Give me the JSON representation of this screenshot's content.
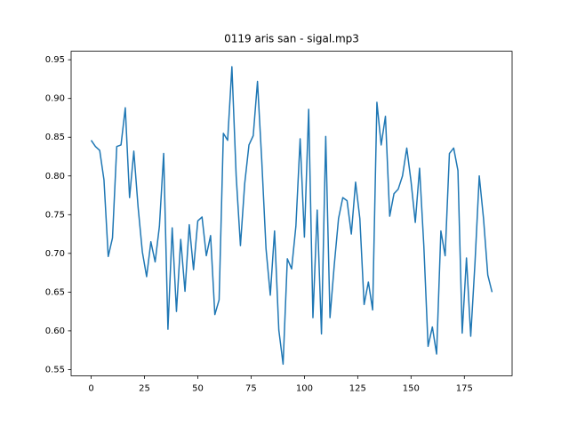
{
  "chart_data": {
    "type": "line",
    "title": "0119 aris san - sigal.mp3",
    "x": [
      0,
      2,
      4,
      6,
      8,
      10,
      12,
      14,
      16,
      18,
      20,
      22,
      24,
      26,
      28,
      30,
      32,
      34,
      36,
      38,
      40,
      42,
      44,
      46,
      48,
      50,
      52,
      54,
      56,
      58,
      60,
      62,
      64,
      66,
      68,
      70,
      72,
      74,
      76,
      78,
      80,
      82,
      84,
      86,
      88,
      90,
      92,
      94,
      96,
      98,
      100,
      102,
      104,
      106,
      108,
      110,
      112,
      114,
      116,
      118,
      120,
      122,
      124,
      126,
      128,
      130,
      132,
      134,
      136,
      138,
      140,
      142,
      144,
      146,
      148,
      150,
      152,
      154,
      156,
      158,
      160,
      162,
      164,
      166,
      168,
      170,
      172,
      174,
      176,
      178,
      180,
      182,
      184,
      186,
      188
    ],
    "series": [
      {
        "color": "#1f77b4",
        "values": [
          0.846,
          0.838,
          0.833,
          0.795,
          0.696,
          0.72,
          0.838,
          0.84,
          0.888,
          0.772,
          0.832,
          0.76,
          0.702,
          0.67,
          0.715,
          0.689,
          0.735,
          0.829,
          0.602,
          0.733,
          0.625,
          0.718,
          0.651,
          0.737,
          0.679,
          0.742,
          0.747,
          0.697,
          0.723,
          0.621,
          0.64,
          0.855,
          0.846,
          0.941,
          0.8,
          0.71,
          0.79,
          0.84,
          0.852,
          0.922,
          0.82,
          0.706,
          0.646,
          0.729,
          0.601,
          0.557,
          0.693,
          0.68,
          0.735,
          0.848,
          0.721,
          0.886,
          0.617,
          0.756,
          0.596,
          0.851,
          0.617,
          0.685,
          0.745,
          0.772,
          0.768,
          0.725,
          0.792,
          0.745,
          0.634,
          0.663,
          0.627,
          0.895,
          0.84,
          0.877,
          0.748,
          0.777,
          0.783,
          0.8,
          0.836,
          0.793,
          0.74,
          0.81,
          0.71,
          0.58,
          0.605,
          0.57,
          0.729,
          0.697,
          0.829,
          0.836,
          0.807,
          0.597,
          0.694,
          0.593,
          0.688,
          0.8,
          0.745,
          0.672,
          0.65
        ]
      }
    ],
    "xlim": [
      -9.4,
      197.4
    ],
    "ylim": [
      0.542,
      0.961
    ],
    "xticks": [
      0,
      25,
      50,
      75,
      100,
      125,
      150,
      175
    ],
    "yticks": [
      0.55,
      {
        "value": 0.6,
        "label": "0.60"
      },
      0.65,
      {
        "value": 0.7,
        "label": "0.70"
      },
      0.75,
      {
        "value": 0.8,
        "label": "0.80"
      },
      0.85,
      {
        "value": 0.9,
        "label": "0.90"
      },
      0.95
    ],
    "grid": false
  }
}
